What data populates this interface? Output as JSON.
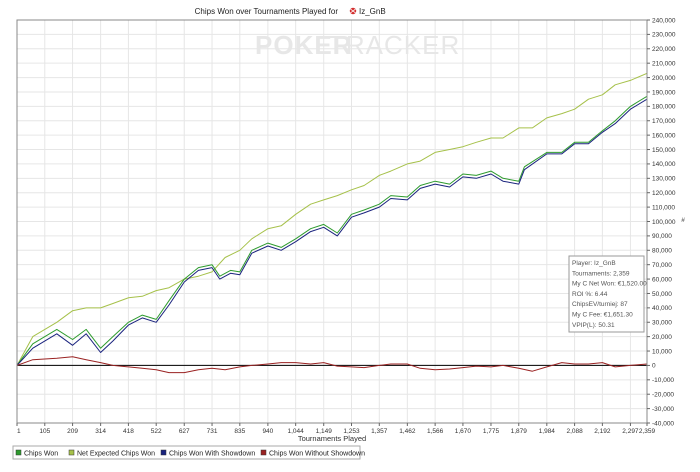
{
  "chart_data": {
    "type": "line",
    "title": "Chips Won over Tournaments Played for",
    "player": "Iz_GnB",
    "watermark": {
      "left": "POKER",
      "right": "TRACKER"
    },
    "xlabel": "Tournaments Played",
    "xlim": [
      1,
      2359
    ],
    "x_ticks": [
      "1",
      "105",
      "209",
      "314",
      "418",
      "522",
      "627",
      "731",
      "835",
      "940",
      "1,044",
      "1,149",
      "1,253",
      "1,357",
      "1,462",
      "1,566",
      "1,670",
      "1,775",
      "1,879",
      "1,984",
      "2,088",
      "2,192",
      "2,297",
      "2,359"
    ],
    "x_tick_values": [
      1,
      105,
      209,
      314,
      418,
      522,
      627,
      731,
      835,
      940,
      1044,
      1149,
      1253,
      1357,
      1462,
      1566,
      1670,
      1775,
      1879,
      1984,
      2088,
      2192,
      2297,
      2359
    ],
    "ylim": [
      -40000,
      240000
    ],
    "y_ticks": [
      "-40,000",
      "-30,000",
      "-20,000",
      "-10,000",
      "0",
      "10,000",
      "20,000",
      "30,000",
      "40,000",
      "50,000",
      "60,000",
      "70,000",
      "80,000",
      "90,000",
      "100,000",
      "110,000",
      "120,000",
      "130,000",
      "140,000",
      "150,000",
      "160,000",
      "170,000",
      "180,000",
      "190,000",
      "200,000",
      "210,000",
      "220,000",
      "230,000",
      "240,000"
    ],
    "y_tick_values": [
      -40000,
      -30000,
      -20000,
      -10000,
      0,
      10000,
      20000,
      30000,
      40000,
      50000,
      60000,
      70000,
      80000,
      90000,
      100000,
      110000,
      120000,
      130000,
      140000,
      150000,
      160000,
      170000,
      180000,
      190000,
      200000,
      210000,
      220000,
      230000,
      240000
    ],
    "grid": true,
    "legend_position": "bottom",
    "series": [
      {
        "name": "Chips Won",
        "color": "#2e9b2e",
        "x": [
          1,
          60,
          150,
          209,
          260,
          314,
          360,
          418,
          470,
          522,
          570,
          627,
          680,
          731,
          760,
          800,
          835,
          880,
          940,
          990,
          1044,
          1100,
          1149,
          1200,
          1253,
          1300,
          1357,
          1400,
          1462,
          1510,
          1566,
          1620,
          1670,
          1720,
          1775,
          1820,
          1879,
          1900,
          1984,
          2040,
          2088,
          2140,
          2192,
          2240,
          2297,
          2359
        ],
        "y": [
          0,
          15000,
          25000,
          18000,
          25000,
          12000,
          20000,
          30000,
          35000,
          32000,
          45000,
          60000,
          68000,
          70000,
          62000,
          66000,
          65000,
          80000,
          85000,
          82000,
          88000,
          95000,
          98000,
          92000,
          105000,
          108000,
          112000,
          118000,
          117000,
          125000,
          128000,
          126000,
          133000,
          132000,
          135000,
          130000,
          128000,
          138000,
          148000,
          148000,
          155000,
          155000,
          163000,
          170000,
          180000,
          187000
        ]
      },
      {
        "name": "Net Expected Chips Won",
        "color": "#a6c14a",
        "x": [
          1,
          60,
          150,
          209,
          260,
          314,
          360,
          418,
          470,
          522,
          570,
          627,
          680,
          731,
          780,
          835,
          880,
          940,
          990,
          1044,
          1100,
          1149,
          1200,
          1253,
          1300,
          1357,
          1400,
          1462,
          1510,
          1566,
          1620,
          1670,
          1720,
          1775,
          1820,
          1879,
          1930,
          1984,
          2040,
          2088,
          2140,
          2192,
          2240,
          2297,
          2359
        ],
        "y": [
          0,
          20000,
          30000,
          38000,
          40000,
          40000,
          43000,
          47000,
          48000,
          52000,
          54000,
          60000,
          62000,
          65000,
          75000,
          80000,
          88000,
          95000,
          97000,
          105000,
          112000,
          115000,
          118000,
          122000,
          125000,
          132000,
          135000,
          140000,
          142000,
          148000,
          150000,
          152000,
          155000,
          158000,
          158000,
          165000,
          165000,
          172000,
          175000,
          178000,
          185000,
          188000,
          195000,
          198000,
          203000
        ]
      },
      {
        "name": "Chips Won With Showdown",
        "color": "#1a237e",
        "x": [
          1,
          60,
          150,
          209,
          260,
          314,
          360,
          418,
          470,
          522,
          570,
          627,
          680,
          731,
          760,
          800,
          835,
          880,
          940,
          990,
          1044,
          1100,
          1149,
          1200,
          1253,
          1300,
          1357,
          1400,
          1462,
          1510,
          1566,
          1620,
          1670,
          1720,
          1775,
          1820,
          1879,
          1900,
          1984,
          2040,
          2088,
          2140,
          2192,
          2240,
          2297,
          2359
        ],
        "y": [
          0,
          12000,
          22000,
          14000,
          22000,
          9000,
          17000,
          28000,
          33000,
          30000,
          42000,
          58000,
          66000,
          68000,
          60000,
          64000,
          63000,
          78000,
          83000,
          80000,
          86000,
          93000,
          96000,
          90000,
          103000,
          106000,
          110000,
          116000,
          115000,
          123000,
          126000,
          124000,
          131000,
          130000,
          133000,
          128000,
          126000,
          136000,
          147000,
          147000,
          154000,
          154000,
          162000,
          168000,
          178000,
          185000
        ]
      },
      {
        "name": "Chips Won Without Showdown",
        "color": "#9a2222",
        "x": [
          1,
          60,
          150,
          209,
          260,
          314,
          360,
          418,
          470,
          522,
          570,
          627,
          680,
          731,
          780,
          835,
          880,
          940,
          990,
          1044,
          1100,
          1149,
          1200,
          1253,
          1300,
          1357,
          1400,
          1462,
          1510,
          1566,
          1620,
          1670,
          1720,
          1775,
          1820,
          1879,
          1930,
          1984,
          2040,
          2088,
          2140,
          2192,
          2240,
          2297,
          2359
        ],
        "y": [
          0,
          4000,
          5000,
          6000,
          4000,
          2000,
          0,
          -1000,
          -2000,
          -3000,
          -5000,
          -5000,
          -3000,
          -2000,
          -3000,
          -1000,
          0,
          1000,
          2000,
          2000,
          1000,
          2000,
          -500,
          -1000,
          -1500,
          0,
          1000,
          1000,
          -2000,
          -3000,
          -2500,
          -1500,
          -500,
          -1000,
          0,
          -2000,
          -4000,
          -1000,
          2000,
          1000,
          1000,
          2000,
          -1000,
          0,
          1000
        ]
      }
    ],
    "stats": [
      "Player: Iz_GnB",
      "Tournaments: 2,359",
      "My C Net Won: €1,520.00",
      "ROI %: 6.44",
      "ChipsEV/turniej: 87",
      "My C Fee: €1,651.30",
      "VPIP(L): 50.31"
    ],
    "y_axis_unit": "#"
  }
}
